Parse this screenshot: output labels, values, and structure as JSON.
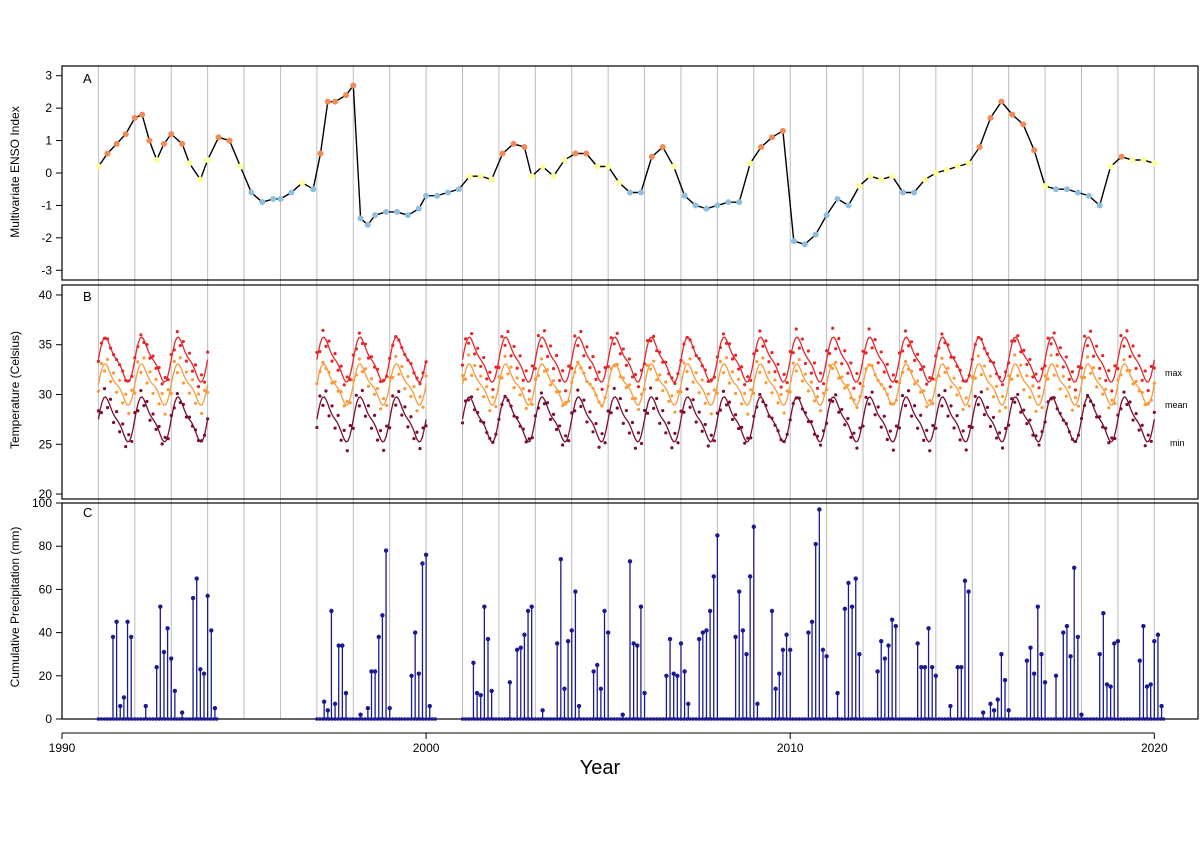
{
  "figure": {
    "xlabel": "Year",
    "x_ticks": [
      1990,
      2000,
      2010,
      2020
    ],
    "year_gridlines": [
      1991,
      1992,
      1993,
      1994,
      1995,
      1996,
      1997,
      1998,
      1999,
      2000,
      2001,
      2002,
      2003,
      2004,
      2005,
      2006,
      2007,
      2008,
      2009,
      2010,
      2011,
      2012,
      2013,
      2014,
      2015,
      2016,
      2017,
      2018,
      2019,
      2020
    ],
    "colors": {
      "gridline": "#bdbdbd",
      "enso_line": "#000000",
      "enso_warm": "#f08a56",
      "enso_neutral": "#ffff99",
      "enso_cool": "#8fbfdf",
      "temp_max": "#e3282b",
      "temp_mean": "#f99a3b",
      "temp_min": "#7a0f2e",
      "precip": "#1b1b8f"
    }
  },
  "chart_data": [
    {
      "panel_label": "A",
      "type": "line",
      "ylabel": "Multivariate ENSO Index",
      "ylim": [
        -3.3,
        3.3
      ],
      "yticks": [
        -3,
        -2,
        -1,
        0,
        1,
        2,
        3
      ],
      "x": [
        1991.0,
        1991.25,
        1991.5,
        1991.75,
        1992.0,
        1992.2,
        1992.4,
        1992.6,
        1992.8,
        1993.0,
        1993.3,
        1993.5,
        1993.8,
        1994.0,
        1994.3,
        1994.6,
        1994.9,
        1995.2,
        1995.5,
        1995.8,
        1996.0,
        1996.3,
        1996.6,
        1996.9,
        1997.1,
        1997.3,
        1997.5,
        1997.8,
        1998.0,
        1998.2,
        1998.4,
        1998.6,
        1998.9,
        1999.2,
        1999.5,
        1999.8,
        2000.0,
        2000.3,
        2000.6,
        2000.9,
        2001.2,
        2001.5,
        2001.8,
        2002.1,
        2002.4,
        2002.7,
        2002.9,
        2003.2,
        2003.5,
        2003.8,
        2004.1,
        2004.4,
        2004.7,
        2005.0,
        2005.3,
        2005.6,
        2005.9,
        2006.2,
        2006.5,
        2006.8,
        2007.1,
        2007.4,
        2007.7,
        2008.0,
        2008.3,
        2008.6,
        2008.9,
        2009.2,
        2009.5,
        2009.8,
        2010.1,
        2010.4,
        2010.7,
        2011.0,
        2011.3,
        2011.6,
        2011.9,
        2012.2,
        2012.5,
        2012.8,
        2013.1,
        2013.4,
        2013.7,
        2014.0,
        2014.3,
        2014.6,
        2014.9,
        2015.2,
        2015.5,
        2015.8,
        2016.1,
        2016.4,
        2016.7,
        2017.0,
        2017.3,
        2017.6,
        2017.9,
        2018.2,
        2018.5,
        2018.8,
        2019.1,
        2019.4,
        2019.7,
        2020.0
      ],
      "series": [
        {
          "values": [
            0.2,
            0.6,
            0.9,
            1.2,
            1.7,
            1.8,
            1.0,
            0.4,
            0.9,
            1.2,
            0.9,
            0.3,
            -0.2,
            0.4,
            1.1,
            1.0,
            0.2,
            -0.6,
            -0.9,
            -0.8,
            -0.8,
            -0.6,
            -0.3,
            -0.5,
            0.6,
            2.2,
            2.2,
            2.4,
            2.7,
            -1.4,
            -1.6,
            -1.3,
            -1.2,
            -1.2,
            -1.3,
            -1.1,
            -0.7,
            -0.7,
            -0.6,
            -0.5,
            -0.1,
            -0.1,
            -0.2,
            0.6,
            0.9,
            0.8,
            -0.1,
            0.2,
            -0.1,
            0.4,
            0.6,
            0.6,
            0.2,
            0.2,
            -0.3,
            -0.6,
            -0.6,
            0.5,
            0.8,
            0.2,
            -0.7,
            -1.0,
            -1.1,
            -1.0,
            -0.9,
            -0.9,
            0.3,
            0.8,
            1.1,
            1.3,
            -2.1,
            -2.2,
            -1.9,
            -1.3,
            -0.8,
            -1.0,
            -0.4,
            -0.1,
            -0.2,
            -0.1,
            -0.6,
            -0.6,
            -0.2,
            0.0,
            0.1,
            0.2,
            0.3,
            0.8,
            1.7,
            2.2,
            1.8,
            1.5,
            0.7,
            -0.4,
            -0.5,
            -0.5,
            -0.6,
            -0.7,
            -1.0,
            0.2,
            0.5,
            0.4,
            0.4,
            0.3
          ]
        }
      ]
    },
    {
      "panel_label": "B",
      "type": "line",
      "ylabel": "Temperature (Celsius)",
      "ylim": [
        19.5,
        41
      ],
      "yticks": [
        20,
        25,
        30,
        35,
        40
      ],
      "period_ranges": [
        [
          1991.0,
          1994.0
        ],
        [
          1997.0,
          2000.0
        ],
        [
          2001.0,
          2020.0
        ]
      ],
      "series": [
        {
          "name": "max",
          "mean_value": 33.5,
          "amplitude": 2.0
        },
        {
          "name": "mean",
          "mean_value": 31.0,
          "amplitude": 1.8
        },
        {
          "name": "min",
          "mean_value": 27.5,
          "amplitude": 2.0
        }
      ]
    },
    {
      "panel_label": "C",
      "type": "bar",
      "ylabel": "Cumulative Precipitation (mm)",
      "ylim": [
        0,
        100
      ],
      "yticks": [
        0,
        20,
        40,
        60,
        80,
        100
      ],
      "stems": [
        {
          "x": 1991.4,
          "y": 38
        },
        {
          "x": 1991.5,
          "y": 45
        },
        {
          "x": 1991.6,
          "y": 6
        },
        {
          "x": 1991.7,
          "y": 10
        },
        {
          "x": 1991.8,
          "y": 45
        },
        {
          "x": 1991.9,
          "y": 38
        },
        {
          "x": 1992.3,
          "y": 6
        },
        {
          "x": 1992.6,
          "y": 24
        },
        {
          "x": 1992.7,
          "y": 52
        },
        {
          "x": 1992.8,
          "y": 31
        },
        {
          "x": 1992.9,
          "y": 42
        },
        {
          "x": 1993.0,
          "y": 28
        },
        {
          "x": 1993.1,
          "y": 13
        },
        {
          "x": 1993.3,
          "y": 3
        },
        {
          "x": 1993.6,
          "y": 56
        },
        {
          "x": 1993.7,
          "y": 65
        },
        {
          "x": 1993.8,
          "y": 23
        },
        {
          "x": 1993.9,
          "y": 21
        },
        {
          "x": 1994.0,
          "y": 57
        },
        {
          "x": 1994.1,
          "y": 41
        },
        {
          "x": 1994.2,
          "y": 5
        },
        {
          "x": 1997.2,
          "y": 8
        },
        {
          "x": 1997.3,
          "y": 4
        },
        {
          "x": 1997.4,
          "y": 50
        },
        {
          "x": 1997.5,
          "y": 7
        },
        {
          "x": 1997.6,
          "y": 34
        },
        {
          "x": 1997.7,
          "y": 34
        },
        {
          "x": 1997.8,
          "y": 12
        },
        {
          "x": 1998.2,
          "y": 2
        },
        {
          "x": 1998.4,
          "y": 5
        },
        {
          "x": 1998.5,
          "y": 22
        },
        {
          "x": 1998.6,
          "y": 22
        },
        {
          "x": 1998.7,
          "y": 38
        },
        {
          "x": 1998.8,
          "y": 48
        },
        {
          "x": 1998.9,
          "y": 78
        },
        {
          "x": 1999.0,
          "y": 5
        },
        {
          "x": 1999.6,
          "y": 20
        },
        {
          "x": 1999.7,
          "y": 40
        },
        {
          "x": 1999.8,
          "y": 21
        },
        {
          "x": 1999.9,
          "y": 72
        },
        {
          "x": 2000.0,
          "y": 76
        },
        {
          "x": 2000.1,
          "y": 6
        },
        {
          "x": 2001.3,
          "y": 26
        },
        {
          "x": 2001.4,
          "y": 12
        },
        {
          "x": 2001.5,
          "y": 11
        },
        {
          "x": 2001.6,
          "y": 52
        },
        {
          "x": 2001.7,
          "y": 37
        },
        {
          "x": 2001.8,
          "y": 13
        },
        {
          "x": 2002.3,
          "y": 17
        },
        {
          "x": 2002.5,
          "y": 32
        },
        {
          "x": 2002.6,
          "y": 33
        },
        {
          "x": 2002.7,
          "y": 39
        },
        {
          "x": 2002.8,
          "y": 50
        },
        {
          "x": 2002.9,
          "y": 52
        },
        {
          "x": 2003.2,
          "y": 4
        },
        {
          "x": 2003.6,
          "y": 35
        },
        {
          "x": 2003.7,
          "y": 74
        },
        {
          "x": 2003.8,
          "y": 14
        },
        {
          "x": 2003.9,
          "y": 36
        },
        {
          "x": 2004.0,
          "y": 41
        },
        {
          "x": 2004.1,
          "y": 59
        },
        {
          "x": 2004.2,
          "y": 6
        },
        {
          "x": 2004.6,
          "y": 22
        },
        {
          "x": 2004.7,
          "y": 25
        },
        {
          "x": 2004.8,
          "y": 14
        },
        {
          "x": 2004.9,
          "y": 50
        },
        {
          "x": 2005.0,
          "y": 40
        },
        {
          "x": 2005.4,
          "y": 2
        },
        {
          "x": 2005.6,
          "y": 73
        },
        {
          "x": 2005.7,
          "y": 35
        },
        {
          "x": 2005.8,
          "y": 34
        },
        {
          "x": 2005.9,
          "y": 52
        },
        {
          "x": 2006.0,
          "y": 12
        },
        {
          "x": 2006.6,
          "y": 20
        },
        {
          "x": 2006.7,
          "y": 37
        },
        {
          "x": 2006.8,
          "y": 21
        },
        {
          "x": 2006.9,
          "y": 20
        },
        {
          "x": 2007.0,
          "y": 35
        },
        {
          "x": 2007.1,
          "y": 22
        },
        {
          "x": 2007.2,
          "y": 7
        },
        {
          "x": 2007.5,
          "y": 37
        },
        {
          "x": 2007.6,
          "y": 40
        },
        {
          "x": 2007.7,
          "y": 41
        },
        {
          "x": 2007.8,
          "y": 50
        },
        {
          "x": 2007.9,
          "y": 66
        },
        {
          "x": 2008.0,
          "y": 85
        },
        {
          "x": 2008.5,
          "y": 38
        },
        {
          "x": 2008.6,
          "y": 59
        },
        {
          "x": 2008.7,
          "y": 41
        },
        {
          "x": 2008.8,
          "y": 30
        },
        {
          "x": 2008.9,
          "y": 66
        },
        {
          "x": 2009.0,
          "y": 89
        },
        {
          "x": 2009.1,
          "y": 7
        },
        {
          "x": 2009.5,
          "y": 50
        },
        {
          "x": 2009.6,
          "y": 14
        },
        {
          "x": 2009.7,
          "y": 21
        },
        {
          "x": 2009.8,
          "y": 32
        },
        {
          "x": 2009.9,
          "y": 39
        },
        {
          "x": 2010.0,
          "y": 32
        },
        {
          "x": 2010.5,
          "y": 40
        },
        {
          "x": 2010.6,
          "y": 45
        },
        {
          "x": 2010.7,
          "y": 81
        },
        {
          "x": 2010.8,
          "y": 97
        },
        {
          "x": 2010.9,
          "y": 32
        },
        {
          "x": 2011.0,
          "y": 29
        },
        {
          "x": 2011.3,
          "y": 12
        },
        {
          "x": 2011.5,
          "y": 51
        },
        {
          "x": 2011.6,
          "y": 63
        },
        {
          "x": 2011.7,
          "y": 52
        },
        {
          "x": 2011.8,
          "y": 65
        },
        {
          "x": 2011.9,
          "y": 30
        },
        {
          "x": 2012.4,
          "y": 22
        },
        {
          "x": 2012.5,
          "y": 36
        },
        {
          "x": 2012.6,
          "y": 28
        },
        {
          "x": 2012.7,
          "y": 34
        },
        {
          "x": 2012.8,
          "y": 46
        },
        {
          "x": 2012.9,
          "y": 43
        },
        {
          "x": 2013.5,
          "y": 35
        },
        {
          "x": 2013.6,
          "y": 24
        },
        {
          "x": 2013.7,
          "y": 24
        },
        {
          "x": 2013.8,
          "y": 42
        },
        {
          "x": 2013.9,
          "y": 24
        },
        {
          "x": 2014.0,
          "y": 20
        },
        {
          "x": 2014.4,
          "y": 6
        },
        {
          "x": 2014.6,
          "y": 24
        },
        {
          "x": 2014.7,
          "y": 24
        },
        {
          "x": 2014.8,
          "y": 64
        },
        {
          "x": 2014.9,
          "y": 59
        },
        {
          "x": 2015.3,
          "y": 3
        },
        {
          "x": 2015.5,
          "y": 7
        },
        {
          "x": 2015.6,
          "y": 4
        },
        {
          "x": 2015.7,
          "y": 9
        },
        {
          "x": 2015.8,
          "y": 30
        },
        {
          "x": 2015.9,
          "y": 18
        },
        {
          "x": 2016.0,
          "y": 4
        },
        {
          "x": 2016.5,
          "y": 27
        },
        {
          "x": 2016.6,
          "y": 33
        },
        {
          "x": 2016.7,
          "y": 21
        },
        {
          "x": 2016.8,
          "y": 52
        },
        {
          "x": 2016.9,
          "y": 30
        },
        {
          "x": 2017.0,
          "y": 17
        },
        {
          "x": 2017.3,
          "y": 20
        },
        {
          "x": 2017.5,
          "y": 40
        },
        {
          "x": 2017.6,
          "y": 43
        },
        {
          "x": 2017.7,
          "y": 29
        },
        {
          "x": 2017.8,
          "y": 70
        },
        {
          "x": 2017.9,
          "y": 38
        },
        {
          "x": 2018.0,
          "y": 2
        },
        {
          "x": 2018.5,
          "y": 30
        },
        {
          "x": 2018.6,
          "y": 49
        },
        {
          "x": 2018.7,
          "y": 16
        },
        {
          "x": 2018.8,
          "y": 15
        },
        {
          "x": 2018.9,
          "y": 35
        },
        {
          "x": 2019.0,
          "y": 36
        },
        {
          "x": 2019.6,
          "y": 27
        },
        {
          "x": 2019.7,
          "y": 43
        },
        {
          "x": 2019.8,
          "y": 15
        },
        {
          "x": 2019.9,
          "y": 16
        },
        {
          "x": 2020.0,
          "y": 36
        },
        {
          "x": 2020.1,
          "y": 39
        },
        {
          "x": 2020.2,
          "y": 6
        }
      ]
    }
  ]
}
